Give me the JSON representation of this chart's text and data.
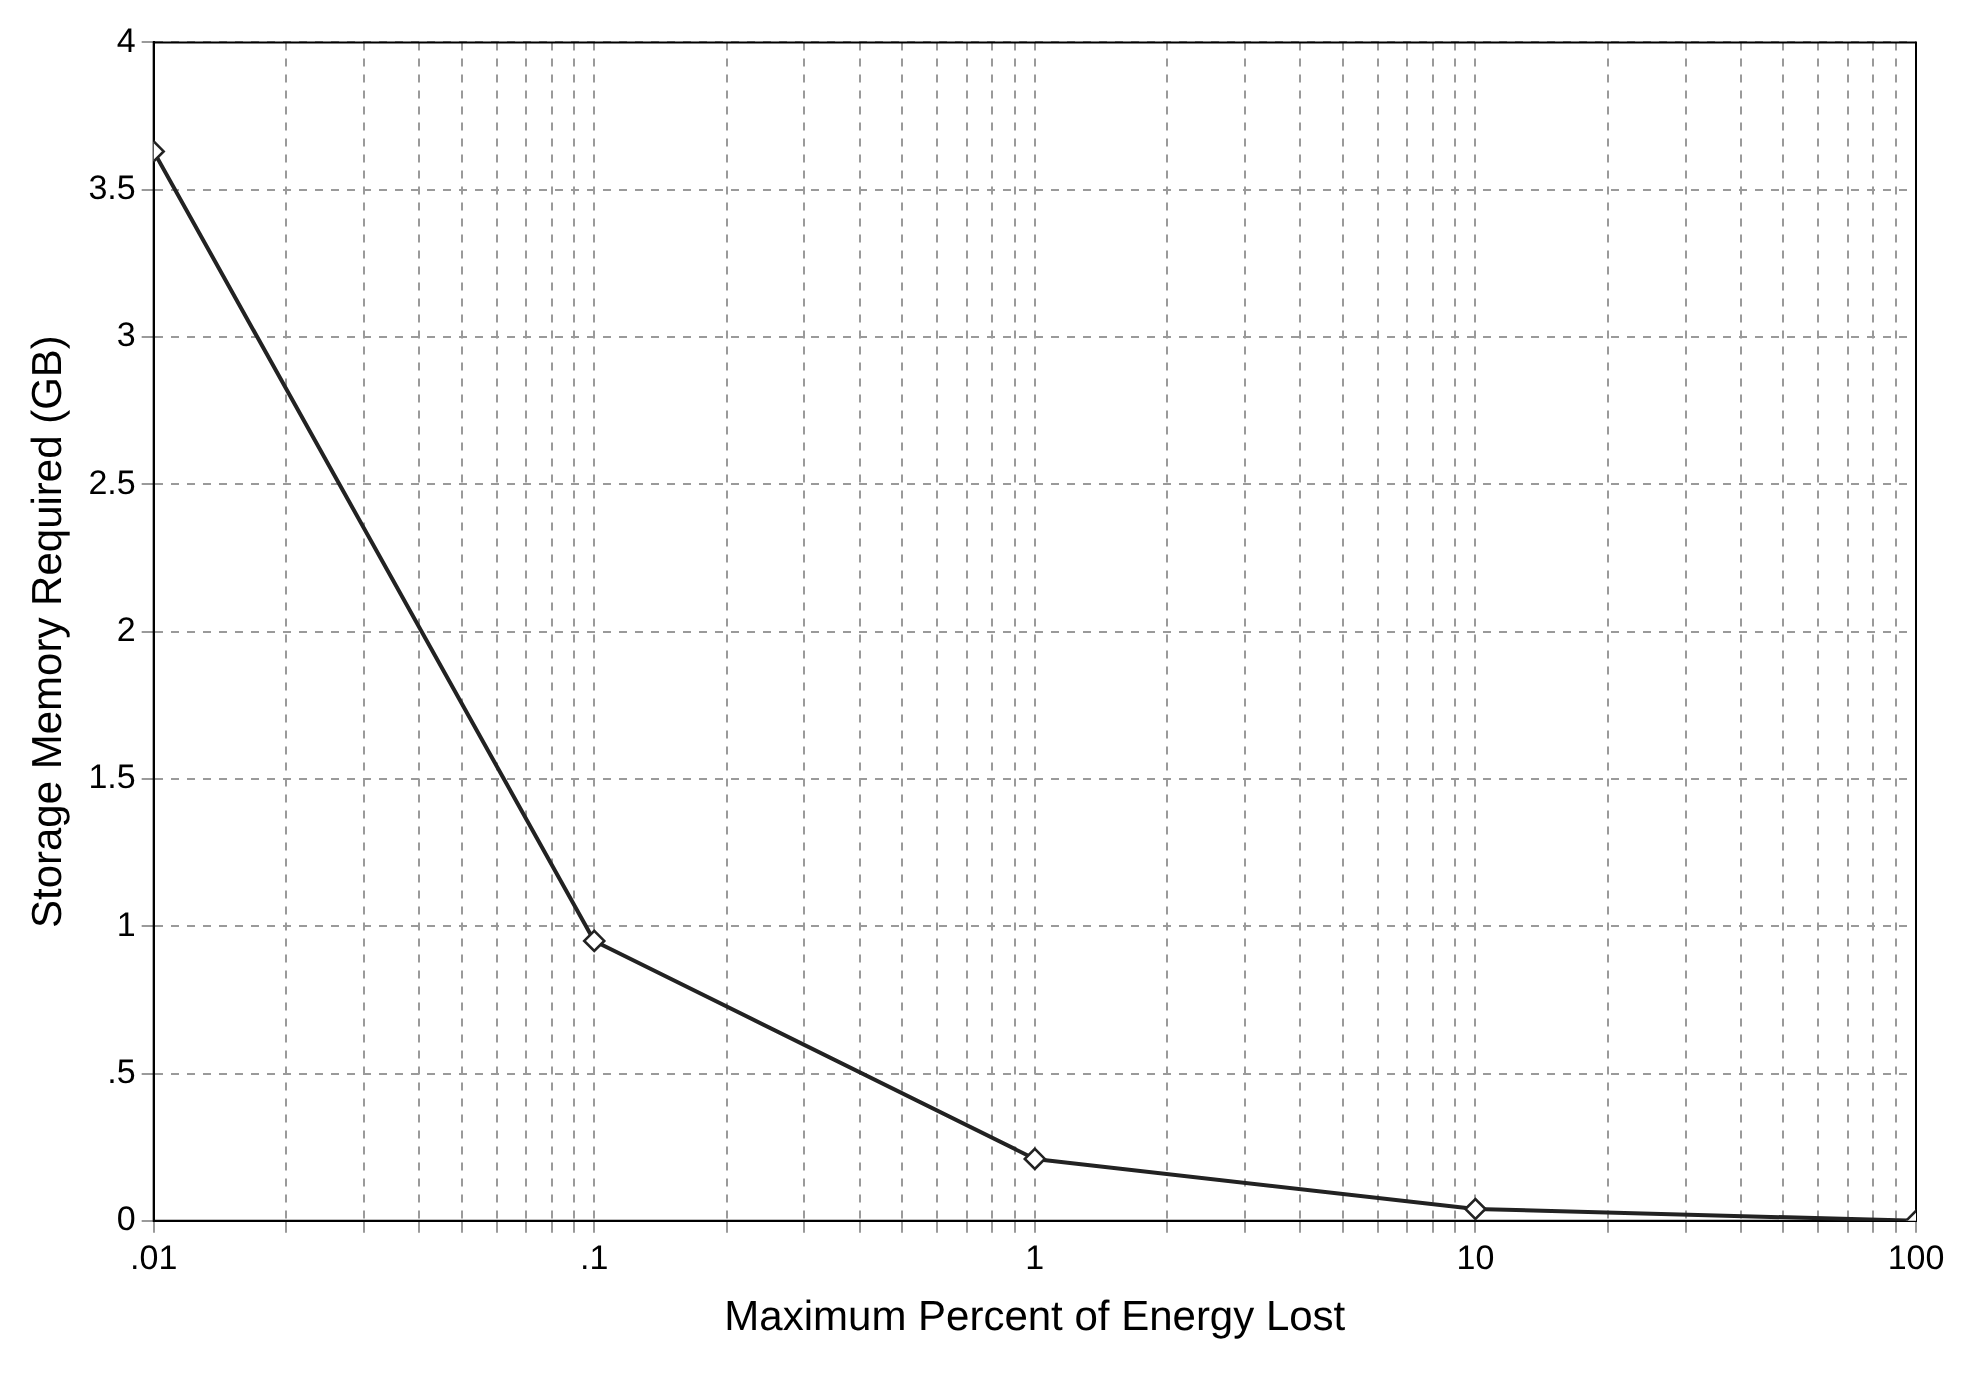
{
  "chart_data": {
    "type": "line",
    "xlabel": "Maximum Percent of Energy Lost",
    "ylabel": "Storage Memory Required (GB)",
    "x": [
      0.01,
      0.1,
      1,
      10,
      100
    ],
    "series": [
      {
        "color": "#222222",
        "values": [
          3.63,
          0.95,
          0.21,
          0.04,
          0
        ]
      }
    ],
    "log": "x",
    "xlim": [
      0.01,
      100
    ],
    "xticks": [
      {
        "value": 0.01,
        "label": ".01"
      },
      {
        "value": 0.02,
        "label": null
      },
      {
        "value": 0.03,
        "label": null
      },
      {
        "value": 0.04,
        "label": null
      },
      {
        "value": 0.05,
        "label": null
      },
      {
        "value": 0.06,
        "label": null
      },
      {
        "value": 0.07,
        "label": null
      },
      {
        "value": 0.08,
        "label": null
      },
      {
        "value": 0.09,
        "label": null
      },
      {
        "value": 0.1,
        "label": ".1"
      },
      {
        "value": 0.2,
        "label": null
      },
      {
        "value": 0.3,
        "label": null
      },
      {
        "value": 0.4,
        "label": null
      },
      {
        "value": 0.5,
        "label": null
      },
      {
        "value": 0.6,
        "label": null
      },
      {
        "value": 0.7,
        "label": null
      },
      {
        "value": 0.8,
        "label": null
      },
      {
        "value": 0.9,
        "label": null
      },
      1,
      {
        "value": 2,
        "label": null
      },
      {
        "value": 3,
        "label": null
      },
      {
        "value": 4,
        "label": null
      },
      {
        "value": 5,
        "label": null
      },
      {
        "value": 6,
        "label": null
      },
      {
        "value": 7,
        "label": null
      },
      {
        "value": 8,
        "label": null
      },
      {
        "value": 9,
        "label": null
      },
      10,
      {
        "value": 20,
        "label": null
      },
      {
        "value": 30,
        "label": null
      },
      {
        "value": 40,
        "label": null
      },
      {
        "value": 50,
        "label": null
      },
      {
        "value": 60,
        "label": null
      },
      {
        "value": 70,
        "label": null
      },
      {
        "value": 80,
        "label": null
      },
      {
        "value": 90,
        "label": null
      },
      100
    ],
    "ylim": [
      0,
      4
    ],
    "yticks": [
      0,
      {
        "value": 0.5,
        "label": ".5"
      },
      1,
      1.5,
      2,
      2.5,
      3,
      3.5,
      4
    ],
    "grid": true,
    "legend": false,
    "marker": "diamond",
    "line_style": "solid"
  }
}
